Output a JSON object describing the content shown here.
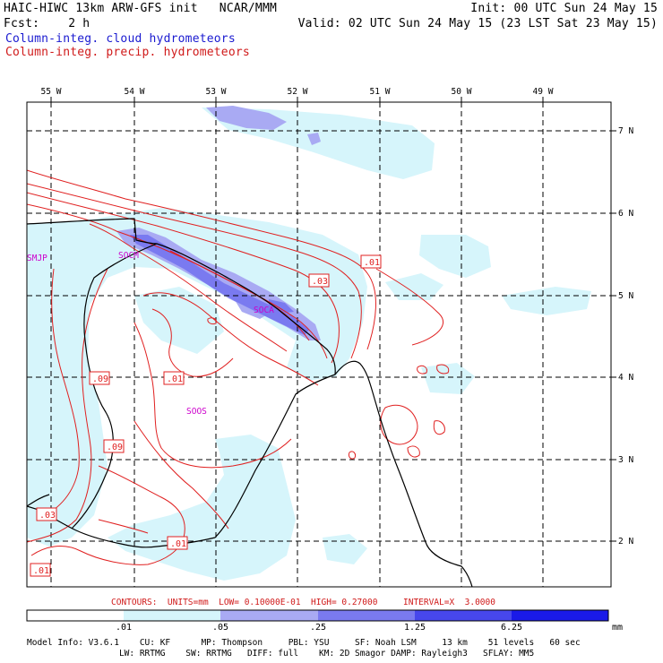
{
  "header": {
    "line1_left": "HAIC-HIWC 13km ARW-GFS init   NCAR/MMM",
    "line1_right": "Init: 00 UTC Sun 24 May 15",
    "line2_left": "Fcst:    2 h",
    "line2_right": "Valid: 02 UTC Sun 24 May 15 (23 LST Sat 23 May 15)",
    "line3": "Column-integ. cloud hydrometeors",
    "line4": "Column-integ. precip. hydrometeors"
  },
  "colors": {
    "cloud_text": "#1a1ad0",
    "precip_text": "#d01a1a",
    "contour": "#e02020",
    "shade_1": "#d6f5fb",
    "shade_2": "#a9aaf3",
    "shade_3": "#7a7af0",
    "shade_4": "#4747ec",
    "shade_5": "#1a1ae8",
    "station": "#cc00cc"
  },
  "map": {
    "lon_labels": [
      "55 W",
      "54 W",
      "53 W",
      "52 W",
      "51 W",
      "50 W",
      "49 W"
    ],
    "lat_labels": [
      "7 N",
      "6 N",
      "5 N",
      "4 N",
      "3 N",
      "2 N"
    ],
    "contour_labels": [
      ".01",
      ".03",
      ".09",
      ".01",
      ".09",
      ".03",
      ".01",
      ".01"
    ],
    "stations": [
      "SMJP",
      "SOCM",
      "SOCA",
      "SOOS"
    ]
  },
  "contour_info": "CONTOURS:  UNITS=mm  LOW= 0.10000E-01  HIGH= 0.27000     INTERVAL=X  3.0000",
  "colorbar": {
    "ticks": [
      ".01",
      ".05",
      ".25",
      "1.25",
      "6.25"
    ],
    "unit": "mm"
  },
  "footer": {
    "line1": "Model Info: V3.6.1    CU: KF      MP: Thompson     PBL: YSU     SF: Noah LSM     13 km    51 levels   60 sec",
    "line2": "                  LW: RRTMG    SW: RRTMG   DIFF: full    KM: 2D Smagor DAMP: Rayleigh3   SFLAY: MM5"
  }
}
